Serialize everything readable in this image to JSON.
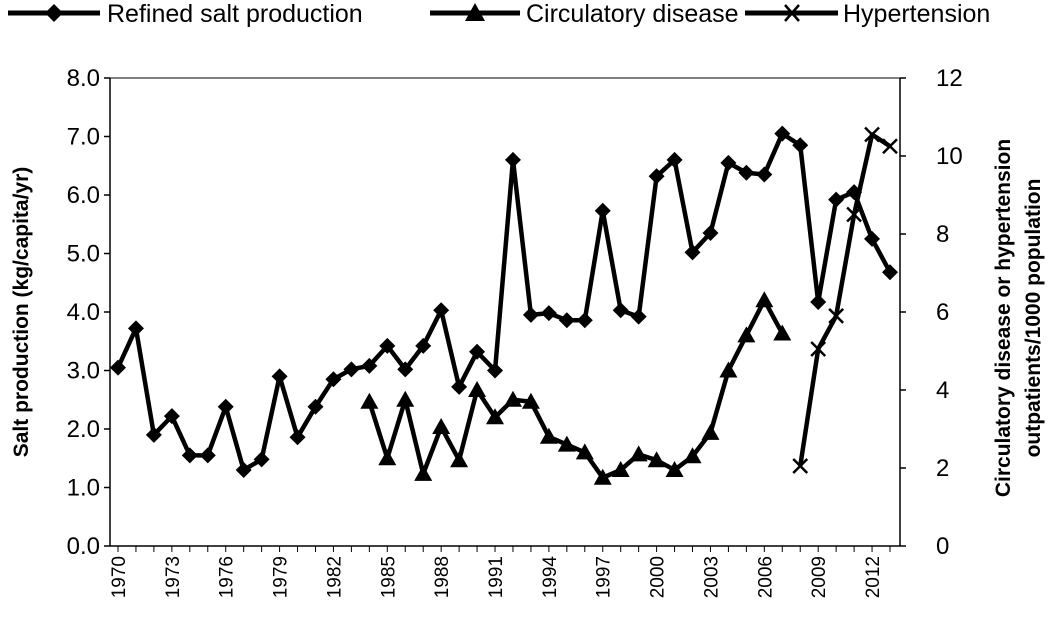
{
  "chart_data": {
    "type": "line",
    "title": "",
    "ylabel": "Salt production (kg/capita/yr)",
    "y2label_line1": "Circulatory disease or hypertension",
    "y2label_line2": "outpatients/1000 population",
    "ylim": [
      0,
      8
    ],
    "y2lim": [
      0,
      12
    ],
    "yticks": [
      "0.0",
      "1.0",
      "2.0",
      "3.0",
      "4.0",
      "5.0",
      "6.0",
      "7.0",
      "8.0"
    ],
    "y2ticks": [
      "0",
      "2",
      "4",
      "6",
      "8",
      "10",
      "12"
    ],
    "xlim": [
      1970,
      2013
    ],
    "xticks": [
      "1970",
      "1973",
      "1976",
      "1979",
      "1982",
      "1985",
      "1988",
      "1991",
      "1994",
      "1997",
      "2000",
      "2003",
      "2006",
      "2009",
      "2012"
    ],
    "grid": false,
    "legend": "top",
    "series": [
      {
        "name": "Refined salt production",
        "marker": "diamond",
        "axis": "left",
        "points": [
          [
            1970,
            3.05
          ],
          [
            1971,
            3.72
          ],
          [
            1972,
            1.9
          ],
          [
            1973,
            2.22
          ],
          [
            1974,
            1.55
          ],
          [
            1975,
            1.55
          ],
          [
            1976,
            2.38
          ],
          [
            1977,
            1.3
          ],
          [
            1978,
            1.48
          ],
          [
            1979,
            2.9
          ],
          [
            1980,
            1.86
          ],
          [
            1981,
            2.38
          ],
          [
            1982,
            2.85
          ],
          [
            1983,
            3.02
          ],
          [
            1984,
            3.08
          ],
          [
            1985,
            3.42
          ],
          [
            1986,
            3.02
          ],
          [
            1987,
            3.42
          ],
          [
            1988,
            4.03
          ],
          [
            1989,
            2.72
          ],
          [
            1990,
            3.32
          ],
          [
            1991,
            3.0
          ],
          [
            1992,
            6.6
          ],
          [
            1993,
            3.95
          ],
          [
            1994,
            3.98
          ],
          [
            1995,
            3.86
          ],
          [
            1996,
            3.86
          ],
          [
            1997,
            5.73
          ],
          [
            1998,
            4.03
          ],
          [
            1999,
            3.92
          ],
          [
            2000,
            6.32
          ],
          [
            2001,
            6.6
          ],
          [
            2002,
            5.02
          ],
          [
            2003,
            5.35
          ],
          [
            2004,
            6.55
          ],
          [
            2005,
            6.38
          ],
          [
            2006,
            6.35
          ],
          [
            2007,
            7.05
          ],
          [
            2008,
            6.85
          ],
          [
            2009,
            4.17
          ],
          [
            2010,
            5.92
          ],
          [
            2011,
            6.05
          ],
          [
            2012,
            5.25
          ],
          [
            2013,
            4.68
          ]
        ]
      },
      {
        "name": "Circulatory disease",
        "marker": "triangle",
        "axis": "right",
        "points": [
          [
            1984,
            3.7
          ],
          [
            1985,
            2.25
          ],
          [
            1986,
            3.75
          ],
          [
            1987,
            1.85
          ],
          [
            1988,
            3.05
          ],
          [
            1989,
            2.2
          ],
          [
            1990,
            4.0
          ],
          [
            1991,
            3.3
          ],
          [
            1992,
            3.75
          ],
          [
            1993,
            3.7
          ],
          [
            1994,
            2.8
          ],
          [
            1995,
            2.6
          ],
          [
            1996,
            2.4
          ],
          [
            1997,
            1.75
          ],
          [
            1998,
            1.95
          ],
          [
            1999,
            2.35
          ],
          [
            2000,
            2.2
          ],
          [
            2001,
            1.95
          ],
          [
            2002,
            2.3
          ],
          [
            2003,
            2.9
          ],
          [
            2004,
            4.5
          ],
          [
            2005,
            5.4
          ],
          [
            2006,
            6.3
          ],
          [
            2007,
            5.45
          ]
        ]
      },
      {
        "name": "Hypertension",
        "marker": "x",
        "axis": "right",
        "points": [
          [
            2008,
            2.05
          ],
          [
            2009,
            5.05
          ],
          [
            2010,
            5.9
          ],
          [
            2011,
            8.5
          ],
          [
            2012,
            10.55
          ],
          [
            2013,
            10.25
          ]
        ]
      }
    ]
  }
}
